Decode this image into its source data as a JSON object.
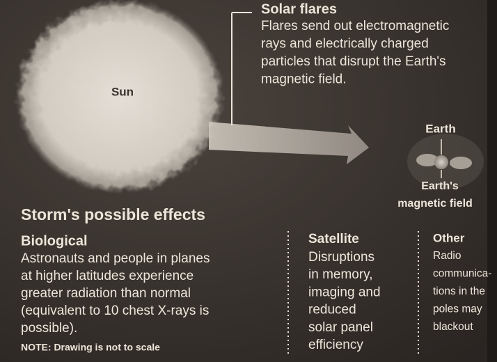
{
  "sun_label": "Sun",
  "solar_flares": {
    "title": "Solar flares",
    "lines": [
      "Flares send out electromagnetic",
      "rays and electrically charged",
      "particles that disrupt the Earth's",
      "magnetic field."
    ]
  },
  "earth_label": "Earth",
  "magnetic_field_label": [
    "Earth's",
    "magnetic field"
  ],
  "effects": {
    "title": "Storm's possible effects",
    "biological": {
      "title": "Biological",
      "lines": [
        "Astronauts and people in planes",
        "at higher latitudes experience",
        "greater radiation than normal",
        "(equivalent to 10 chest X-rays is",
        "possible)."
      ]
    },
    "satellite": {
      "title": "Satellite",
      "lines": [
        "Disruptions",
        "in memory,",
        "imaging and",
        "reduced",
        "solar panel",
        "efficiency"
      ]
    },
    "other": {
      "title": "Other",
      "lines": [
        "Radio",
        "communica-",
        "tions in the",
        "poles may",
        "blackout"
      ]
    }
  },
  "note": "NOTE: Drawing is not to scale"
}
